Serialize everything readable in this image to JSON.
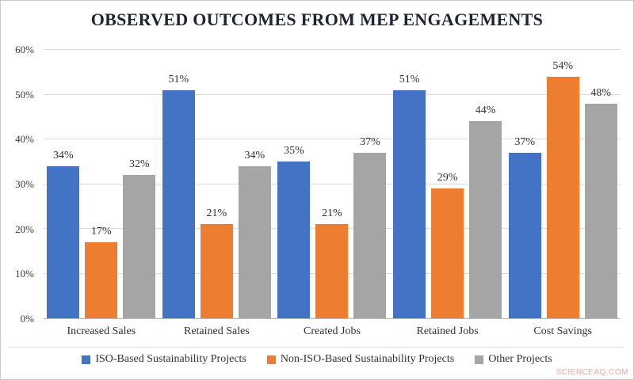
{
  "watermark": "SCIENCEAQ.COM",
  "colors": {
    "series_blue": "#4472C4",
    "series_orange": "#ED7D31",
    "series_gray": "#A5A5A5",
    "gridline": "#D9D9D9",
    "axis_line": "#B7B7B7",
    "title_text": "#1E2433",
    "watermark_text": "#F0A29C"
  },
  "chart_data": {
    "type": "bar",
    "title": "OBSERVED OUTCOMES FROM MEP ENGAGEMENTS",
    "categories": [
      "Increased Sales",
      "Retained Sales",
      "Created Jobs",
      "Retained Jobs",
      "Cost Savings"
    ],
    "series": [
      {
        "name": "ISO-Based Sustainability Projects",
        "color": "#4472C4",
        "values": [
          34,
          51,
          35,
          51,
          37
        ]
      },
      {
        "name": "Non-ISO-Based Sustainability Projects",
        "color": "#ED7D31",
        "values": [
          17,
          21,
          21,
          29,
          54
        ]
      },
      {
        "name": "Other Projects",
        "color": "#A5A5A5",
        "values": [
          32,
          34,
          37,
          44,
          48
        ]
      }
    ],
    "xlabel": "",
    "ylabel": "",
    "ylim": [
      0,
      60
    ],
    "ytick_step": 10,
    "ytick_labels": [
      "0%",
      "10%",
      "20%",
      "30%",
      "40%",
      "50%",
      "60%"
    ],
    "data_label_format": "{v}%",
    "grid": true,
    "legend_position": "bottom"
  }
}
